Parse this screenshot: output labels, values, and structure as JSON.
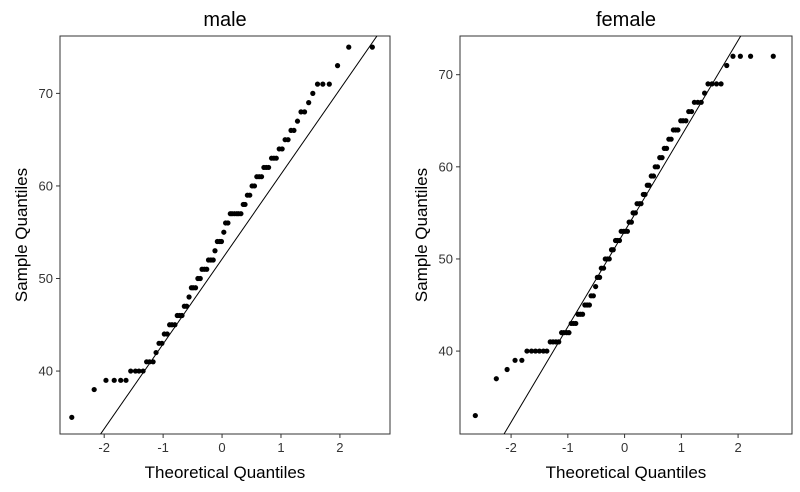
{
  "chart_data": [
    {
      "type": "scatter",
      "title": "male",
      "xlabel": "Theoretical Quantiles",
      "ylabel": "Sample Quantiles",
      "xlim": [
        -2.75,
        2.85
      ],
      "ylim": [
        33.2,
        76.2
      ],
      "xticks": [
        -2,
        -1,
        0,
        1,
        2
      ],
      "yticks": [
        40,
        50,
        60,
        70
      ],
      "grid": false,
      "reference_line": {
        "slope": 9.17,
        "intercept": 52.1
      },
      "series": [
        {
          "x": [
            -2.55,
            -2.17,
            -1.97,
            -1.83,
            -1.72,
            -1.63,
            -1.55,
            -1.47,
            -1.41,
            -1.34,
            -1.28,
            -1.23,
            -1.17,
            -1.12,
            -1.07,
            -1.02,
            -0.98,
            -0.93,
            -0.89,
            -0.85,
            -0.8,
            -0.76,
            -0.72,
            -0.68,
            -0.64,
            -0.6,
            -0.56,
            -0.52,
            -0.49,
            -0.45,
            -0.41,
            -0.37,
            -0.34,
            -0.3,
            -0.26,
            -0.23,
            -0.19,
            -0.15,
            -0.12,
            -0.08,
            -0.04,
            -0.01,
            0.03,
            0.06,
            0.1,
            0.14,
            0.17,
            0.21,
            0.25,
            0.28,
            0.32,
            0.36,
            0.39,
            0.43,
            0.47,
            0.51,
            0.55,
            0.59,
            0.63,
            0.67,
            0.71,
            0.75,
            0.79,
            0.84,
            0.88,
            0.92,
            0.97,
            1.02,
            1.07,
            1.12,
            1.17,
            1.22,
            1.28,
            1.34,
            1.4,
            1.47,
            1.54,
            1.62,
            1.71,
            1.82,
            1.96,
            2.15,
            2.55
          ],
          "y": [
            35,
            38,
            39,
            39,
            39,
            39,
            40,
            40,
            40,
            40,
            41,
            41,
            41,
            42,
            43,
            43,
            44,
            44,
            45,
            45,
            45,
            46,
            46,
            46,
            47,
            47,
            48,
            49,
            49,
            49,
            50,
            50,
            51,
            51,
            51,
            52,
            52,
            52,
            53,
            54,
            54,
            54,
            55,
            56,
            56,
            57,
            57,
            57,
            57,
            57,
            57,
            58,
            58,
            59,
            59,
            60,
            60,
            61,
            61,
            61,
            62,
            62,
            62,
            63,
            63,
            63,
            64,
            64,
            65,
            65,
            66,
            66,
            67,
            68,
            68,
            69,
            70,
            71,
            71,
            71,
            73,
            75,
            75
          ]
        }
      ]
    },
    {
      "type": "scatter",
      "title": "female",
      "xlabel": "Theoretical Quantiles",
      "ylabel": "Sample Quantiles",
      "xlim": [
        -2.9,
        2.95
      ],
      "ylim": [
        31.0,
        74.2
      ],
      "xticks": [
        -2,
        -1,
        0,
        1,
        2
      ],
      "yticks": [
        40,
        50,
        60,
        70
      ],
      "grid": false,
      "reference_line": {
        "slope": 10.36,
        "intercept": 53.0
      },
      "series": [
        {
          "x": [
            -2.63,
            -2.26,
            -2.07,
            -1.93,
            -1.81,
            -1.72,
            -1.64,
            -1.57,
            -1.5,
            -1.43,
            -1.37,
            -1.31,
            -1.26,
            -1.21,
            -1.16,
            -1.11,
            -1.07,
            -1.02,
            -0.98,
            -0.94,
            -0.9,
            -0.86,
            -0.82,
            -0.78,
            -0.74,
            -0.7,
            -0.66,
            -0.62,
            -0.59,
            -0.55,
            -0.51,
            -0.48,
            -0.44,
            -0.41,
            -0.37,
            -0.34,
            -0.3,
            -0.27,
            -0.23,
            -0.2,
            -0.16,
            -0.13,
            -0.09,
            -0.06,
            -0.02,
            0.01,
            0.05,
            0.08,
            0.12,
            0.15,
            0.19,
            0.22,
            0.26,
            0.29,
            0.33,
            0.36,
            0.4,
            0.43,
            0.47,
            0.51,
            0.54,
            0.58,
            0.62,
            0.66,
            0.7,
            0.74,
            0.78,
            0.82,
            0.86,
            0.9,
            0.94,
            0.99,
            1.03,
            1.08,
            1.13,
            1.18,
            1.23,
            1.29,
            1.35,
            1.41,
            1.47,
            1.54,
            1.62,
            1.7,
            1.8,
            1.91,
            2.04,
            2.22,
            2.62
          ],
          "y": [
            33,
            37,
            38,
            39,
            39,
            40,
            40,
            40,
            40,
            40,
            40,
            41,
            41,
            41,
            41,
            42,
            42,
            42,
            42,
            43,
            43,
            43,
            44,
            44,
            44,
            45,
            45,
            45,
            46,
            46,
            47,
            48,
            48,
            49,
            49,
            50,
            50,
            50,
            51,
            51,
            52,
            52,
            52,
            53,
            53,
            53,
            53,
            54,
            54,
            55,
            55,
            56,
            56,
            56,
            57,
            57,
            58,
            58,
            59,
            59,
            60,
            60,
            61,
            61,
            62,
            62,
            63,
            63,
            64,
            64,
            64,
            65,
            65,
            65,
            66,
            66,
            67,
            67,
            67,
            68,
            69,
            69,
            69,
            69,
            71,
            72,
            72,
            72,
            72
          ]
        }
      ]
    }
  ]
}
